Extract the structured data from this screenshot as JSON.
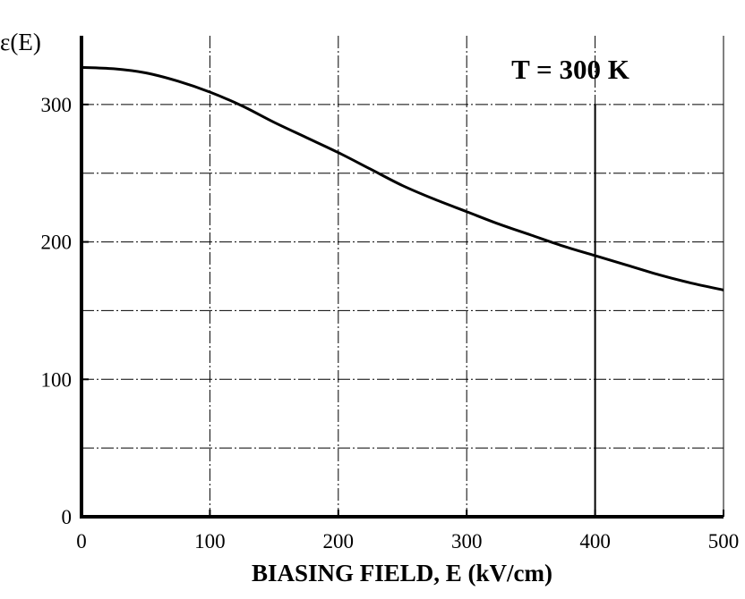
{
  "chart_data": {
    "type": "line",
    "title": "",
    "xlabel": "BIASING  FIELD, E  (kV/cm)",
    "ylabel": "ε(E)",
    "xlim": [
      0,
      500
    ],
    "ylim": [
      0,
      350
    ],
    "x_ticks": [
      "0",
      "100",
      "200",
      "300",
      "400",
      "500"
    ],
    "y_ticks": [
      "0",
      "100",
      "200",
      "300"
    ],
    "grid": true,
    "annotation": "T = 300 K",
    "marker_x": 400,
    "series": [
      {
        "x": [
          0,
          25,
          50,
          75,
          100,
          125,
          150,
          175,
          200,
          225,
          250,
          275,
          300,
          325,
          350,
          375,
          400,
          425,
          450,
          475,
          500
        ],
        "values": [
          327,
          326,
          323,
          317,
          309,
          299,
          287,
          276,
          265,
          253,
          241,
          231,
          222,
          213,
          205,
          197,
          190,
          183,
          176,
          170,
          165
        ]
      }
    ]
  }
}
